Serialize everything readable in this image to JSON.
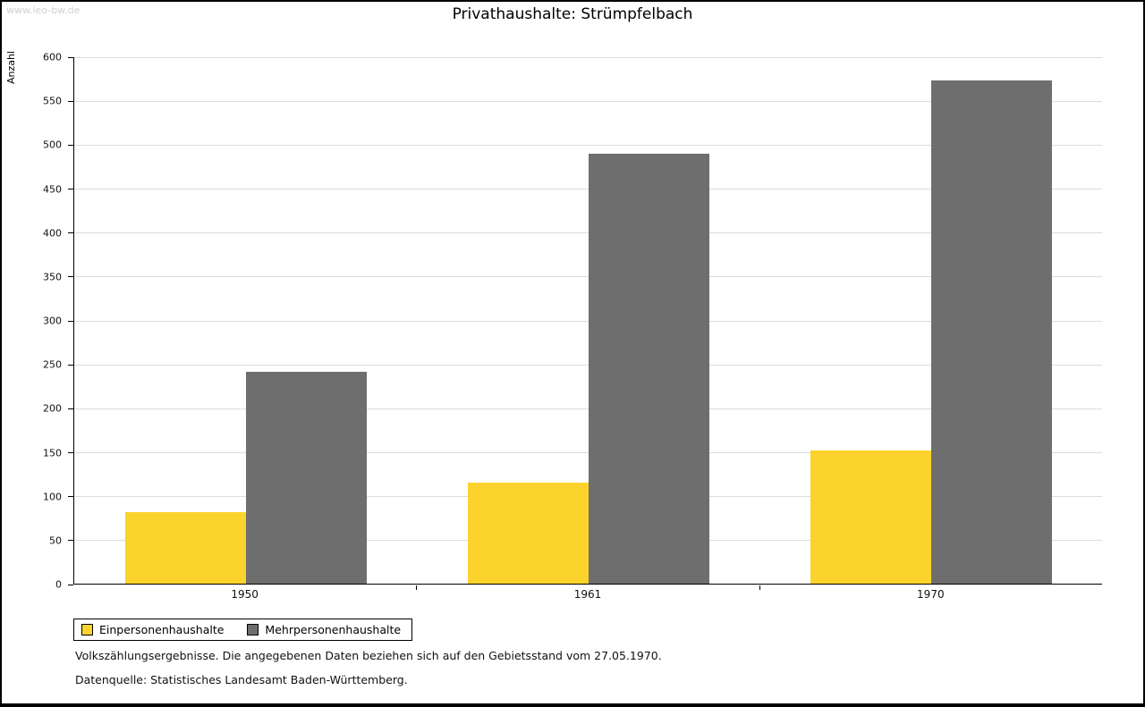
{
  "watermark": "www.leo-bw.de",
  "chart_data": {
    "type": "bar",
    "title": "Privathaushalte: Strümpfelbach",
    "ylabel": "Anzahl",
    "xlabel": "",
    "categories": [
      "1950",
      "1961",
      "1970"
    ],
    "series": [
      {
        "name": "Einpersonenhaushalte",
        "color": "#FBD32C",
        "values": [
          82,
          115,
          152
        ]
      },
      {
        "name": "Mehrpersonenhaushalte",
        "color": "#6E6E6E",
        "values": [
          241,
          490,
          574
        ]
      }
    ],
    "ylim": [
      0,
      600
    ],
    "ytick_step": 50,
    "grid": true,
    "legend_position": "bottom-left"
  },
  "notes": [
    "Volkszählungsergebnisse. Die angegebenen Daten beziehen sich auf den Gebietsstand vom 27.05.1970.",
    "Datenquelle: Statistisches Landesamt Baden-Württemberg."
  ]
}
